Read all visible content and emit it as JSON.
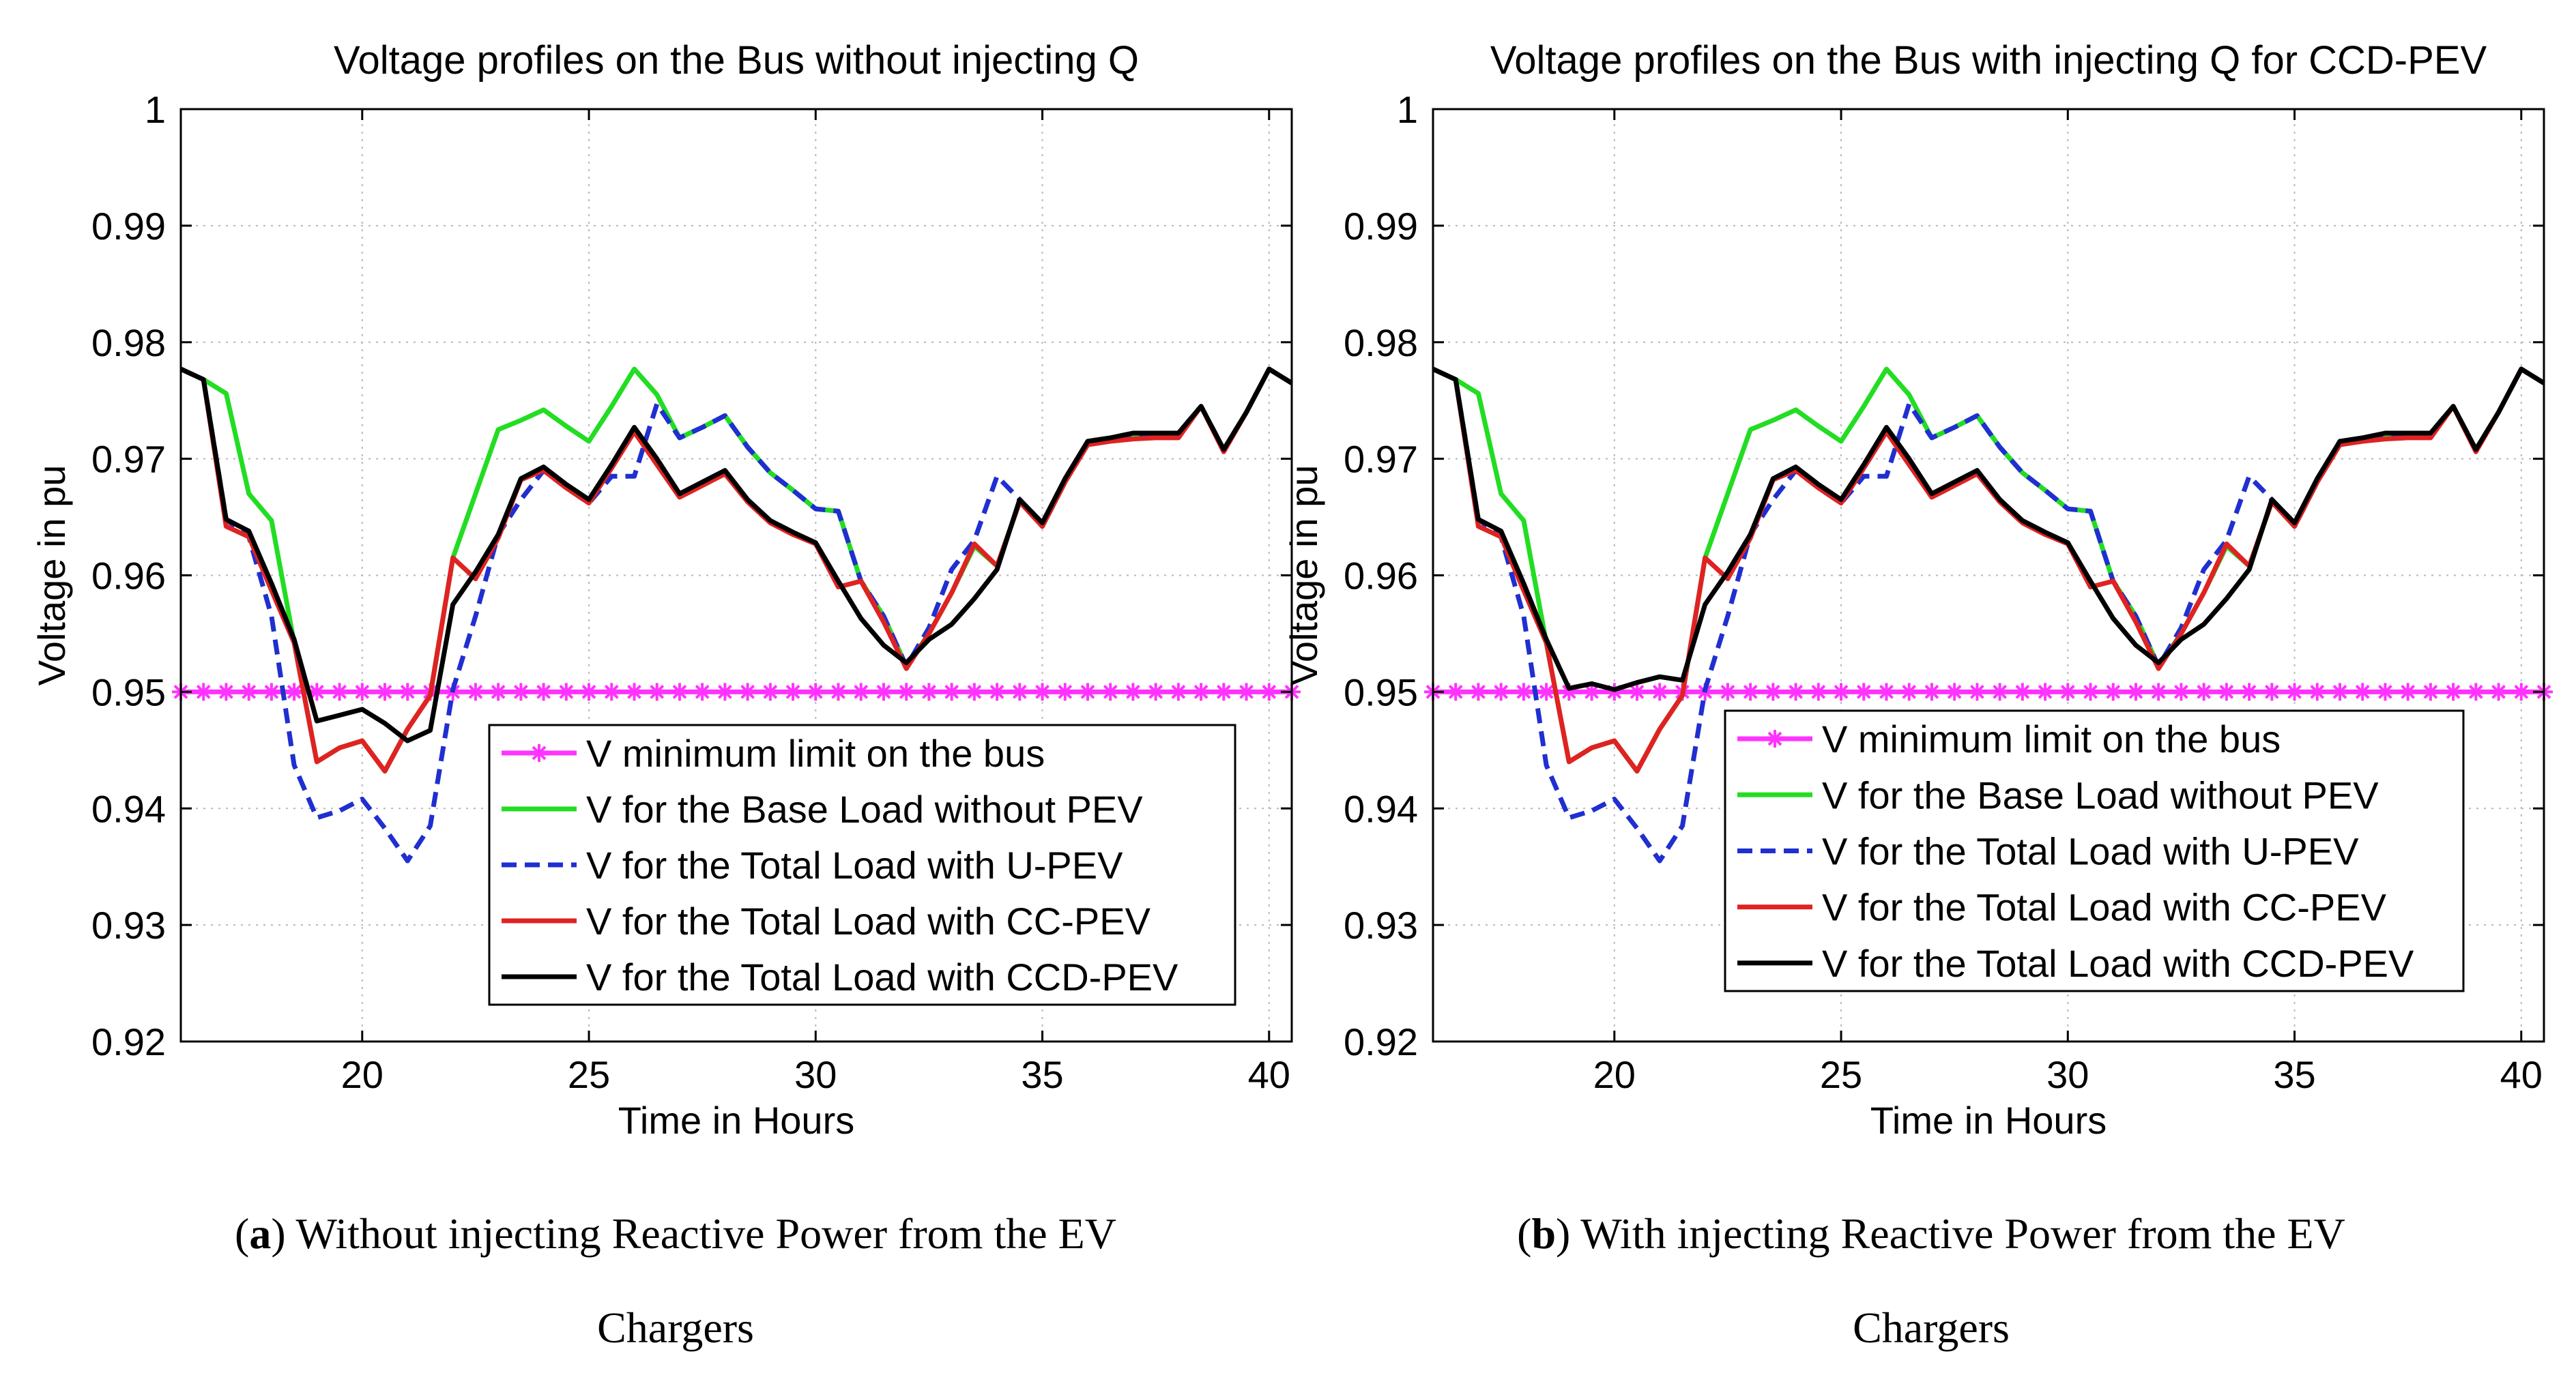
{
  "chart_data": [
    {
      "type": "line",
      "title": "Voltage profiles on the Bus without injecting Q",
      "xlabel": "Time in Hours",
      "ylabel": "Voltage in pu",
      "xlim": [
        16,
        40.5
      ],
      "ylim": [
        0.92,
        1.0
      ],
      "xticks": [
        20,
        25,
        30,
        35,
        40
      ],
      "yticks": [
        0.92,
        0.93,
        0.94,
        0.95,
        0.96,
        0.97,
        0.98,
        0.99,
        1.0
      ],
      "ytick_labels": [
        "0.92",
        "0.93",
        "0.94",
        "0.95",
        "0.96",
        "0.97",
        "0.98",
        "0.99",
        "1"
      ],
      "grid": true,
      "legend_position": "lower-right",
      "caption": {
        "letter": "a",
        "text": " Without injecting Reactive Power from the EV",
        "line2": "Chargers"
      },
      "x": [
        16,
        16.5,
        17,
        17.5,
        18,
        18.5,
        19,
        19.5,
        20,
        20.5,
        21,
        21.5,
        22,
        22.5,
        23,
        23.5,
        24,
        24.5,
        25,
        25.5,
        26,
        26.5,
        27,
        27.5,
        28,
        28.5,
        29,
        29.5,
        30,
        30.5,
        31,
        31.5,
        32,
        32.5,
        33,
        33.5,
        34,
        34.5,
        35,
        35.5,
        36,
        36.5,
        37,
        37.5,
        38,
        38.5,
        39,
        39.5,
        40,
        40.5
      ],
      "series": [
        {
          "name": "V minimum limit on the bus",
          "color": "#ff33ff",
          "dash": "solid",
          "marker": "star",
          "values": [
            0.95,
            0.95,
            0.95,
            0.95,
            0.95,
            0.95,
            0.95,
            0.95,
            0.95,
            0.95,
            0.95,
            0.95,
            0.95,
            0.95,
            0.95,
            0.95,
            0.95,
            0.95,
            0.95,
            0.95,
            0.95,
            0.95,
            0.95,
            0.95,
            0.95,
            0.95,
            0.95,
            0.95,
            0.95,
            0.95,
            0.95,
            0.95,
            0.95,
            0.95,
            0.95,
            0.95,
            0.95,
            0.95,
            0.95,
            0.95,
            0.95,
            0.95,
            0.95,
            0.95,
            0.95,
            0.95,
            0.95,
            0.95,
            0.95,
            0.95
          ]
        },
        {
          "name": "V for the Base Load without PEV",
          "color": "#22dd22",
          "dash": "solid",
          "values": [
            0.9777,
            0.9768,
            0.9756,
            0.967,
            0.9647,
            0.9542,
            0.944,
            0.9452,
            0.9458,
            0.9432,
            0.9468,
            0.9497,
            0.9615,
            0.967,
            0.9725,
            0.9733,
            0.9742,
            0.9728,
            0.9715,
            0.9745,
            0.9777,
            0.9755,
            0.9718,
            0.9727,
            0.9737,
            0.971,
            0.9688,
            0.9673,
            0.9657,
            0.9655,
            0.9595,
            0.9565,
            0.9522,
            0.955,
            0.9585,
            0.9625,
            0.9608,
            0.9663,
            0.9642,
            0.968,
            0.9715,
            0.9718,
            0.972,
            0.9722,
            0.9722,
            0.9745,
            0.9708,
            0.974,
            0.9777,
            0.9765
          ]
        },
        {
          "name": "V for the Total Load with U-PEV",
          "color": "#1f2fd0",
          "dash": "dashed",
          "values": [
            0.9777,
            0.9768,
            0.9648,
            0.9633,
            0.9565,
            0.9437,
            0.9392,
            0.9398,
            0.9408,
            0.9383,
            0.9355,
            0.9385,
            0.9502,
            0.9565,
            0.9635,
            0.9665,
            0.969,
            0.9675,
            0.9662,
            0.9685,
            0.9685,
            0.9747,
            0.9718,
            0.9727,
            0.9737,
            0.971,
            0.9688,
            0.9673,
            0.9657,
            0.9655,
            0.9595,
            0.9565,
            0.9522,
            0.9555,
            0.9605,
            0.963,
            0.9685,
            0.9665,
            0.9642,
            0.968,
            0.9715,
            0.9718,
            0.972,
            0.9722,
            0.9722,
            0.9745,
            0.9708,
            0.974,
            0.9777,
            0.9765
          ]
        },
        {
          "name": "V for the Total Load with CC-PEV",
          "color": "#e02222",
          "dash": "solid",
          "values": [
            0.9777,
            0.9768,
            0.9642,
            0.9633,
            0.9587,
            0.9542,
            0.944,
            0.9452,
            0.9458,
            0.9432,
            0.9468,
            0.9497,
            0.9615,
            0.9597,
            0.9632,
            0.9682,
            0.969,
            0.9675,
            0.9662,
            0.9692,
            0.9723,
            0.9695,
            0.9667,
            0.9677,
            0.9687,
            0.9663,
            0.9645,
            0.9635,
            0.9627,
            0.959,
            0.9595,
            0.956,
            0.952,
            0.955,
            0.9585,
            0.9627,
            0.9608,
            0.9663,
            0.9642,
            0.968,
            0.9712,
            0.9715,
            0.9717,
            0.9718,
            0.9718,
            0.9745,
            0.9706,
            0.974,
            0.9777,
            0.9765
          ]
        },
        {
          "name": "V for the Total Load with CCD-PEV",
          "color": "#000000",
          "dash": "solid",
          "values": [
            0.9777,
            0.9768,
            0.9648,
            0.9638,
            0.9593,
            0.9545,
            0.9475,
            0.948,
            0.9485,
            0.9473,
            0.9458,
            0.9467,
            0.9575,
            0.9603,
            0.9635,
            0.9683,
            0.9693,
            0.9678,
            0.9665,
            0.9695,
            0.9727,
            0.97,
            0.967,
            0.968,
            0.969,
            0.9665,
            0.9647,
            0.9637,
            0.9628,
            0.9595,
            0.9563,
            0.954,
            0.9525,
            0.9545,
            0.9558,
            0.958,
            0.9605,
            0.9665,
            0.9645,
            0.9683,
            0.9715,
            0.9718,
            0.9722,
            0.9722,
            0.9722,
            0.9745,
            0.9708,
            0.974,
            0.9777,
            0.9765
          ]
        }
      ]
    },
    {
      "type": "line",
      "title": "Voltage profiles on the Bus with injecting Q for CCD-PEV",
      "xlabel": "Time in Hours",
      "ylabel": "Voltage in pu",
      "xlim": [
        16,
        40.5
      ],
      "ylim": [
        0.92,
        1.0
      ],
      "xticks": [
        20,
        25,
        30,
        35,
        40
      ],
      "yticks": [
        0.92,
        0.93,
        0.94,
        0.95,
        0.96,
        0.97,
        0.98,
        0.99,
        1.0
      ],
      "ytick_labels": [
        "0.92",
        "0.93",
        "0.94",
        "0.95",
        "0.96",
        "0.97",
        "0.98",
        "0.99",
        "1"
      ],
      "grid": true,
      "legend_position": "lower-right",
      "caption": {
        "letter": "b",
        "text": " With injecting Reactive Power from the EV",
        "line2": "Chargers"
      },
      "x": [
        16,
        16.5,
        17,
        17.5,
        18,
        18.5,
        19,
        19.5,
        20,
        20.5,
        21,
        21.5,
        22,
        22.5,
        23,
        23.5,
        24,
        24.5,
        25,
        25.5,
        26,
        26.5,
        27,
        27.5,
        28,
        28.5,
        29,
        29.5,
        30,
        30.5,
        31,
        31.5,
        32,
        32.5,
        33,
        33.5,
        34,
        34.5,
        35,
        35.5,
        36,
        36.5,
        37,
        37.5,
        38,
        38.5,
        39,
        39.5,
        40,
        40.5
      ],
      "series": [
        {
          "name": "V minimum limit on the bus",
          "color": "#ff33ff",
          "dash": "solid",
          "marker": "star",
          "values": [
            0.95,
            0.95,
            0.95,
            0.95,
            0.95,
            0.95,
            0.95,
            0.95,
            0.95,
            0.95,
            0.95,
            0.95,
            0.95,
            0.95,
            0.95,
            0.95,
            0.95,
            0.95,
            0.95,
            0.95,
            0.95,
            0.95,
            0.95,
            0.95,
            0.95,
            0.95,
            0.95,
            0.95,
            0.95,
            0.95,
            0.95,
            0.95,
            0.95,
            0.95,
            0.95,
            0.95,
            0.95,
            0.95,
            0.95,
            0.95,
            0.95,
            0.95,
            0.95,
            0.95,
            0.95,
            0.95,
            0.95,
            0.95,
            0.95,
            0.95
          ]
        },
        {
          "name": "V for the Base Load without PEV",
          "color": "#22dd22",
          "dash": "solid",
          "values": [
            0.9777,
            0.9768,
            0.9756,
            0.967,
            0.9647,
            0.9542,
            0.944,
            0.9452,
            0.9458,
            0.9432,
            0.9468,
            0.9497,
            0.9615,
            0.967,
            0.9725,
            0.9733,
            0.9742,
            0.9728,
            0.9715,
            0.9745,
            0.9777,
            0.9755,
            0.9718,
            0.9727,
            0.9737,
            0.971,
            0.9688,
            0.9673,
            0.9657,
            0.9655,
            0.9595,
            0.9565,
            0.9522,
            0.955,
            0.9585,
            0.9625,
            0.9608,
            0.9663,
            0.9642,
            0.968,
            0.9715,
            0.9718,
            0.972,
            0.9722,
            0.9722,
            0.9745,
            0.9708,
            0.974,
            0.9777,
            0.9765
          ]
        },
        {
          "name": "V for the Total Load with U-PEV",
          "color": "#1f2fd0",
          "dash": "dashed",
          "values": [
            0.9777,
            0.9768,
            0.9648,
            0.9633,
            0.9565,
            0.9437,
            0.9392,
            0.9398,
            0.9408,
            0.9383,
            0.9355,
            0.9385,
            0.9502,
            0.9565,
            0.9635,
            0.9665,
            0.969,
            0.9675,
            0.9662,
            0.9685,
            0.9685,
            0.9747,
            0.9718,
            0.9727,
            0.9737,
            0.971,
            0.9688,
            0.9673,
            0.9657,
            0.9655,
            0.9595,
            0.9565,
            0.9522,
            0.9555,
            0.9605,
            0.963,
            0.9685,
            0.9665,
            0.9642,
            0.968,
            0.9715,
            0.9718,
            0.972,
            0.9722,
            0.9722,
            0.9745,
            0.9708,
            0.974,
            0.9777,
            0.9765
          ]
        },
        {
          "name": "V for the Total Load with CC-PEV",
          "color": "#e02222",
          "dash": "solid",
          "values": [
            0.9777,
            0.9768,
            0.9642,
            0.9633,
            0.9587,
            0.9542,
            0.944,
            0.9452,
            0.9458,
            0.9432,
            0.9468,
            0.9497,
            0.9615,
            0.9597,
            0.9632,
            0.9682,
            0.969,
            0.9675,
            0.9662,
            0.9692,
            0.9723,
            0.9695,
            0.9667,
            0.9677,
            0.9687,
            0.9663,
            0.9645,
            0.9635,
            0.9627,
            0.959,
            0.9595,
            0.956,
            0.952,
            0.955,
            0.9585,
            0.9627,
            0.9608,
            0.9663,
            0.9642,
            0.968,
            0.9712,
            0.9715,
            0.9717,
            0.9718,
            0.9718,
            0.9745,
            0.9706,
            0.974,
            0.9777,
            0.9765
          ]
        },
        {
          "name": "V for the Total Load with CCD-PEV",
          "color": "#000000",
          "dash": "solid",
          "values": [
            0.9777,
            0.9768,
            0.9648,
            0.9638,
            0.9593,
            0.9545,
            0.9503,
            0.9507,
            0.9502,
            0.9508,
            0.9513,
            0.951,
            0.9575,
            0.9603,
            0.9635,
            0.9683,
            0.9693,
            0.9678,
            0.9665,
            0.9695,
            0.9727,
            0.97,
            0.967,
            0.968,
            0.969,
            0.9665,
            0.9647,
            0.9637,
            0.9628,
            0.9595,
            0.9563,
            0.954,
            0.9525,
            0.9545,
            0.9558,
            0.958,
            0.9605,
            0.9665,
            0.9645,
            0.9683,
            0.9715,
            0.9718,
            0.9722,
            0.9722,
            0.9722,
            0.9745,
            0.9708,
            0.974,
            0.9777,
            0.9765
          ]
        }
      ]
    }
  ]
}
